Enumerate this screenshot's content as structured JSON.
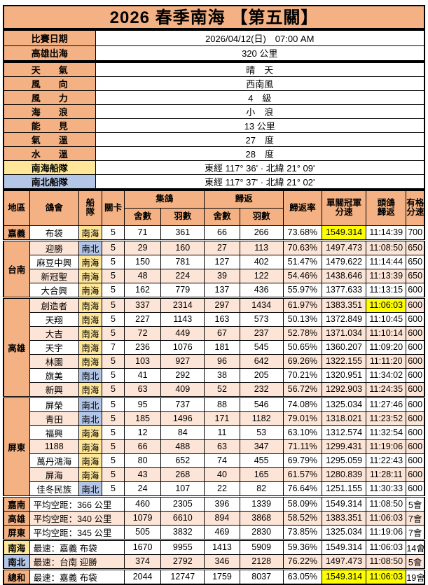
{
  "title": "2026 春季南海 【第五關】",
  "colors": {
    "header_orange": "#F4B183",
    "row_peach": "#FCE4D6",
    "fleet_nanhai_yellow": "#FFE699",
    "fleet_nanbei_blue": "#B4C6E7",
    "highlight_yellow": "#FFFF00",
    "border": "#000000"
  },
  "info": [
    {
      "label": "比賽日期",
      "value": "2026/04/12(日)　07:00 AM"
    },
    {
      "label": "高雄出海",
      "value": "320 公里"
    }
  ],
  "weather": [
    {
      "label": "天　　氣",
      "value": "晴　天"
    },
    {
      "label": "風　　向",
      "value": "西南風"
    },
    {
      "label": "風　　力",
      "value": "4　級"
    },
    {
      "label": "海　　浪",
      "value": "小　浪"
    },
    {
      "label": "能　　見",
      "value": "13 公里"
    },
    {
      "label": "氣　　溫",
      "value": "27　度"
    },
    {
      "label": "水　　溫",
      "value": "28　度"
    }
  ],
  "fleets": [
    {
      "label": "南海船隊",
      "value": "東經 117° 36' · 北緯 21° 09'",
      "bg": "yellow"
    },
    {
      "label": "南北船隊",
      "value": "東經 117° 37' · 北緯 21° 02'",
      "bg": "blue"
    }
  ],
  "table": {
    "headers": {
      "region": "地區",
      "club": "鴿會",
      "fleet_lines": [
        "船",
        "隊"
      ],
      "stage": "關卡",
      "collected_group": "集鴿",
      "returned_group": "歸返",
      "lofts": "舍數",
      "birds": "羽數",
      "return_rate": "歸返率",
      "champion_speed_lines": [
        "單關冠軍",
        "分速"
      ],
      "first_pigeon_lines": [
        "頭鴿",
        "歸返"
      ],
      "qualify_speed_lines": [
        "有格",
        "分速"
      ]
    },
    "regions": [
      {
        "name": "嘉義",
        "rows": [
          {
            "club": "布袋",
            "fleet": "南海",
            "stage": "5",
            "c_lofts": "71",
            "c_birds": "361",
            "r_lofts": "66",
            "r_birds": "266",
            "rate": "73.68%",
            "speed": "1549.314",
            "time": "11:14:39",
            "grade": "700",
            "hl": [
              "speed"
            ]
          }
        ]
      },
      {
        "name": "台南",
        "rows": [
          {
            "club": "迎勝",
            "fleet": "南北",
            "stage": "5",
            "c_lofts": "29",
            "c_birds": "160",
            "r_lofts": "27",
            "r_birds": "113",
            "rate": "70.63%",
            "speed": "1497.473",
            "time": "11:08:50",
            "grade": "650",
            "hl": []
          },
          {
            "club": "麻豆中興",
            "fleet": "南海",
            "stage": "5",
            "c_lofts": "150",
            "c_birds": "781",
            "r_lofts": "127",
            "r_birds": "402",
            "rate": "51.47%",
            "speed": "1479.622",
            "time": "11:14:44",
            "grade": "650",
            "hl": []
          },
          {
            "club": "新冠聖",
            "fleet": "南海",
            "stage": "5",
            "c_lofts": "48",
            "c_birds": "224",
            "r_lofts": "39",
            "r_birds": "122",
            "rate": "54.46%",
            "speed": "1438.646",
            "time": "11:13:39",
            "grade": "650",
            "hl": []
          },
          {
            "club": "大合興",
            "fleet": "南海",
            "stage": "5",
            "c_lofts": "162",
            "c_birds": "779",
            "r_lofts": "137",
            "r_birds": "436",
            "rate": "55.97%",
            "speed": "1377.633",
            "time": "11:13:15",
            "grade": "600",
            "hl": []
          }
        ]
      },
      {
        "name": "高雄",
        "rows": [
          {
            "club": "創造者",
            "fleet": "南海",
            "stage": "5",
            "c_lofts": "337",
            "c_birds": "2314",
            "r_lofts": "297",
            "r_birds": "1434",
            "rate": "61.97%",
            "speed": "1383.351",
            "time": "11:06:03",
            "grade": "600",
            "hl": [
              "time"
            ]
          },
          {
            "club": "天翔",
            "fleet": "南海",
            "stage": "5",
            "c_lofts": "227",
            "c_birds": "1143",
            "r_lofts": "163",
            "r_birds": "573",
            "rate": "50.13%",
            "speed": "1372.849",
            "time": "11:10:45",
            "grade": "600",
            "hl": []
          },
          {
            "club": "大吉",
            "fleet": "南海",
            "stage": "5",
            "c_lofts": "72",
            "c_birds": "449",
            "r_lofts": "67",
            "r_birds": "237",
            "rate": "52.78%",
            "speed": "1371.034",
            "time": "11:10:14",
            "grade": "600",
            "hl": []
          },
          {
            "club": "天宇",
            "fleet": "南海",
            "stage": "7",
            "c_lofts": "236",
            "c_birds": "1076",
            "r_lofts": "181",
            "r_birds": "545",
            "rate": "50.65%",
            "speed": "1360.207",
            "time": "11:09:20",
            "grade": "600",
            "hl": []
          },
          {
            "club": "林園",
            "fleet": "南海",
            "stage": "5",
            "c_lofts": "103",
            "c_birds": "927",
            "r_lofts": "96",
            "r_birds": "642",
            "rate": "69.26%",
            "speed": "1322.155",
            "time": "11:11:20",
            "grade": "600",
            "hl": []
          },
          {
            "club": "旗美",
            "fleet": "南北",
            "stage": "5",
            "c_lofts": "41",
            "c_birds": "292",
            "r_lofts": "38",
            "r_birds": "205",
            "rate": "70.21%",
            "speed": "1320.951",
            "time": "11:34:02",
            "grade": "600",
            "hl": []
          },
          {
            "club": "新興",
            "fleet": "南海",
            "stage": "5",
            "c_lofts": "63",
            "c_birds": "409",
            "r_lofts": "52",
            "r_birds": "232",
            "rate": "56.72%",
            "speed": "1292.903",
            "time": "11:24:35",
            "grade": "600",
            "hl": []
          }
        ]
      },
      {
        "name": "屏東",
        "rows": [
          {
            "club": "屏榮",
            "fleet": "南北",
            "stage": "5",
            "c_lofts": "95",
            "c_birds": "737",
            "r_lofts": "88",
            "r_birds": "546",
            "rate": "74.08%",
            "speed": "1325.034",
            "time": "11:27:46",
            "grade": "600",
            "hl": []
          },
          {
            "club": "青田",
            "fleet": "南北",
            "stage": "5",
            "c_lofts": "185",
            "c_birds": "1496",
            "r_lofts": "171",
            "r_birds": "1182",
            "rate": "79.01%",
            "speed": "1318.021",
            "time": "11:23:52",
            "grade": "600",
            "hl": []
          },
          {
            "club": "福興",
            "fleet": "南海",
            "stage": "5",
            "c_lofts": "12",
            "c_birds": "84",
            "r_lofts": "11",
            "r_birds": "53",
            "rate": "63.10%",
            "speed": "1312.574",
            "time": "11:32:54",
            "grade": "600",
            "hl": []
          },
          {
            "club": "1188",
            "fleet": "南海",
            "stage": "5",
            "c_lofts": "66",
            "c_birds": "488",
            "r_lofts": "63",
            "r_birds": "347",
            "rate": "71.11%",
            "speed": "1299.431",
            "time": "11:19:06",
            "grade": "600",
            "hl": []
          },
          {
            "club": "萬丹鴻海",
            "fleet": "南海",
            "stage": "5",
            "c_lofts": "80",
            "c_birds": "652",
            "r_lofts": "74",
            "r_birds": "455",
            "rate": "69.79%",
            "speed": "1295.059",
            "time": "11:22:43",
            "grade": "600",
            "hl": []
          },
          {
            "club": "屏海",
            "fleet": "南海",
            "stage": "5",
            "c_lofts": "43",
            "c_birds": "268",
            "r_lofts": "40",
            "r_birds": "165",
            "rate": "61.57%",
            "speed": "1280.839",
            "time": "11:28:11",
            "grade": "600",
            "hl": []
          },
          {
            "club": "佳冬民族",
            "fleet": "南北",
            "stage": "5",
            "c_lofts": "24",
            "c_birds": "107",
            "r_lofts": "22",
            "r_birds": "82",
            "rate": "76.64%",
            "speed": "1251.155",
            "time": "11:30:33",
            "grade": "600",
            "hl": []
          }
        ]
      }
    ],
    "summary": [
      {
        "label": "嘉南",
        "label_bg": "orange",
        "desc": "平均空距：366 公里",
        "c_lofts": "460",
        "c_birds": "2305",
        "r_lofts": "396",
        "r_birds": "1339",
        "rate": "58.09%",
        "speed": "1549.314",
        "time": "11:08:50",
        "grade": "5會",
        "hl": [],
        "row_bg": "white",
        "sep": true
      },
      {
        "label": "高雄",
        "label_bg": "orange",
        "desc": "平均空距：340 公里",
        "c_lofts": "1079",
        "c_birds": "6610",
        "r_lofts": "894",
        "r_birds": "3868",
        "rate": "58.52%",
        "speed": "1383.351",
        "time": "11:06:03",
        "grade": "7會",
        "hl": [],
        "row_bg": "peach",
        "sep": false
      },
      {
        "label": "屏東",
        "label_bg": "orange",
        "desc": "平均空距：345 公里",
        "c_lofts": "505",
        "c_birds": "3832",
        "r_lofts": "469",
        "r_birds": "2830",
        "rate": "73.85%",
        "speed": "1325.034",
        "time": "11:19:06",
        "grade": "7會",
        "hl": [],
        "row_bg": "white",
        "sep": false
      },
      {
        "label": "南海",
        "label_bg": "yellow",
        "desc": "最速：嘉義 布袋",
        "c_lofts": "1670",
        "c_birds": "9955",
        "r_lofts": "1413",
        "r_birds": "5909",
        "rate": "59.36%",
        "speed": "1549.314",
        "time": "11:06:03",
        "grade": "14會",
        "hl": [],
        "row_bg": "white",
        "sep": true
      },
      {
        "label": "南北",
        "label_bg": "blue",
        "desc": "最速：台南 迎勝",
        "c_lofts": "374",
        "c_birds": "2792",
        "r_lofts": "346",
        "r_birds": "2128",
        "rate": "76.22%",
        "speed": "1497.473",
        "time": "11:08:50",
        "grade": "5會",
        "hl": [],
        "row_bg": "peach",
        "sep": false
      },
      {
        "label": "總和",
        "label_bg": "orange",
        "desc": "最速：嘉義 布袋",
        "c_lofts": "2044",
        "c_birds": "12747",
        "r_lofts": "1759",
        "r_birds": "8037",
        "rate": "63.05%",
        "speed": "1549.314",
        "time": "11:06:03",
        "grade": "19會",
        "hl": [
          "speed",
          "time"
        ],
        "row_bg": "white",
        "sep": true
      }
    ]
  }
}
